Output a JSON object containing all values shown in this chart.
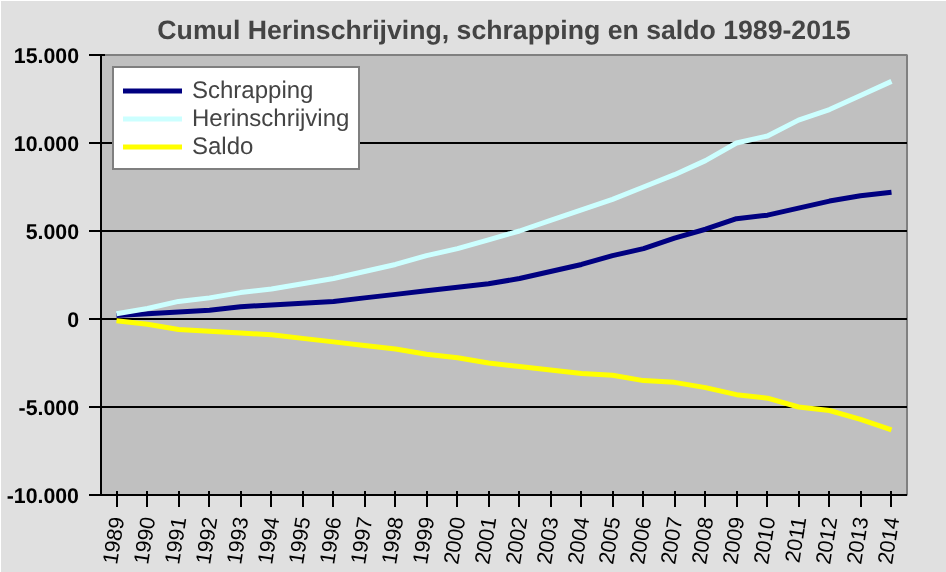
{
  "chart_data": {
    "type": "line",
    "title": "Cumul Herinschrijving, schrapping en saldo 1989-2015",
    "categories": [
      "1989",
      "1990",
      "1991",
      "1992",
      "1993",
      "1994",
      "1995",
      "1996",
      "1997",
      "1998",
      "1999",
      "2000",
      "2001",
      "2002",
      "2003",
      "2004",
      "2005",
      "2006",
      "2007",
      "2008",
      "2009",
      "2010",
      "2011",
      "2012",
      "2013",
      "2014"
    ],
    "series": [
      {
        "name": "Schrapping",
        "color": "#000080",
        "values": [
          200,
          300,
          400,
          500,
          700,
          800,
          900,
          1000,
          1200,
          1400,
          1600,
          1800,
          2000,
          2300,
          2700,
          3100,
          3600,
          4000,
          4600,
          5100,
          5700,
          5900,
          6300,
          6700,
          7000,
          7200
        ]
      },
      {
        "name": "Herinschrijving",
        "color": "#ccffff",
        "values": [
          300,
          600,
          1000,
          1200,
          1500,
          1700,
          2000,
          2300,
          2700,
          3100,
          3600,
          4000,
          4500,
          5000,
          5600,
          6200,
          6800,
          7500,
          8200,
          9000,
          10000,
          10400,
          11300,
          11900,
          12700,
          13500
        ]
      },
      {
        "name": "Saldo",
        "color": "#ffff00",
        "values": [
          -100,
          -300,
          -600,
          -700,
          -800,
          -900,
          -1100,
          -1300,
          -1500,
          -1700,
          -2000,
          -2200,
          -2500,
          -2700,
          -2900,
          -3100,
          -3200,
          -3500,
          -3600,
          -3900,
          -4300,
          -4500,
          -5000,
          -5200,
          -5700,
          -6300
        ]
      }
    ],
    "ylim": [
      -10000,
      15000
    ],
    "yticks": [
      {
        "value": -10000,
        "label": "-10.000"
      },
      {
        "value": -5000,
        "label": "-5.000"
      },
      0,
      {
        "value": 5000,
        "label": "5.000"
      },
      {
        "value": 10000,
        "label": "10.000"
      },
      {
        "value": 15000,
        "label": "15.000"
      }
    ],
    "grid": "y",
    "legend": "top left",
    "marker": "none",
    "line_style": "solid"
  }
}
